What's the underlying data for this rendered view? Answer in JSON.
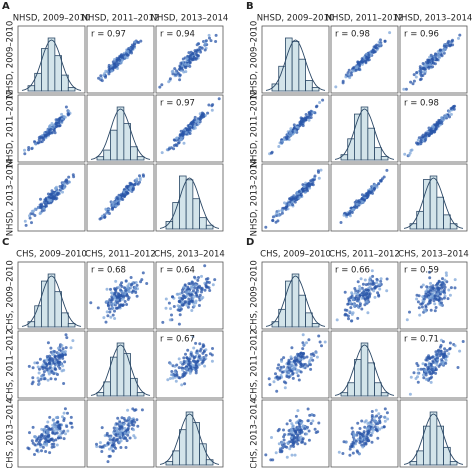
{
  "panels": [
    {
      "letter": "A",
      "labels": [
        "NHSD, 2009–2010",
        "NHSD, 2011–2012",
        "NHSD, 2013–2014"
      ],
      "correlations": [
        {
          "value": 0.97,
          "label": "r = 0.97"
        },
        {
          "value": 0.94,
          "label": "r = 0.94"
        },
        {
          "value": 0.97,
          "label": "r = 0.97"
        }
      ],
      "histograms": [
        [
          3,
          10,
          24,
          30,
          20,
          9,
          2
        ],
        [
          2,
          6,
          18,
          32,
          22,
          8,
          2
        ],
        [
          4,
          14,
          28,
          26,
          16,
          6,
          2
        ]
      ]
    },
    {
      "letter": "B",
      "labels": [
        "NHSD, 2009–2010",
        "NHSD, 2011–2012",
        "NHSD, 2013–2014"
      ],
      "correlations": [
        {
          "value": 0.98,
          "label": "r = 0.98"
        },
        {
          "value": 0.96,
          "label": "r = 0.96"
        },
        {
          "value": 0.98,
          "label": "r = 0.98"
        }
      ],
      "histograms": [
        [
          4,
          14,
          30,
          28,
          18,
          6,
          2
        ],
        [
          3,
          12,
          26,
          30,
          18,
          7,
          2
        ],
        [
          3,
          10,
          28,
          30,
          18,
          8,
          3
        ]
      ]
    },
    {
      "letter": "C",
      "labels": [
        "CHS, 2009–2010",
        "CHS, 2011–2012",
        "CHS, 2013–2014"
      ],
      "correlations": [
        {
          "value": 0.68,
          "label": "r = 0.68"
        },
        {
          "value": 0.64,
          "label": "r = 0.64"
        },
        {
          "value": 0.67,
          "label": "r = 0.67"
        }
      ],
      "histograms": [
        [
          3,
          12,
          26,
          30,
          20,
          8,
          2
        ],
        [
          2,
          8,
          22,
          30,
          24,
          10,
          2
        ],
        [
          2,
          8,
          20,
          30,
          24,
          12,
          3
        ]
      ]
    },
    {
      "letter": "D",
      "labels": [
        "CHS, 2009–2010",
        "CHS, 2011–2012",
        "CHS, 2013–2014"
      ],
      "correlations": [
        {
          "value": 0.66,
          "label": "r = 0.66"
        },
        {
          "value": 0.59,
          "label": "r = 0.59"
        },
        {
          "value": 0.71,
          "label": "r = 0.71"
        }
      ],
      "histograms": [
        [
          3,
          10,
          26,
          30,
          18,
          8,
          2
        ],
        [
          2,
          8,
          22,
          32,
          20,
          8,
          2
        ],
        [
          2,
          8,
          22,
          30,
          22,
          10,
          2
        ]
      ]
    }
  ]
}
